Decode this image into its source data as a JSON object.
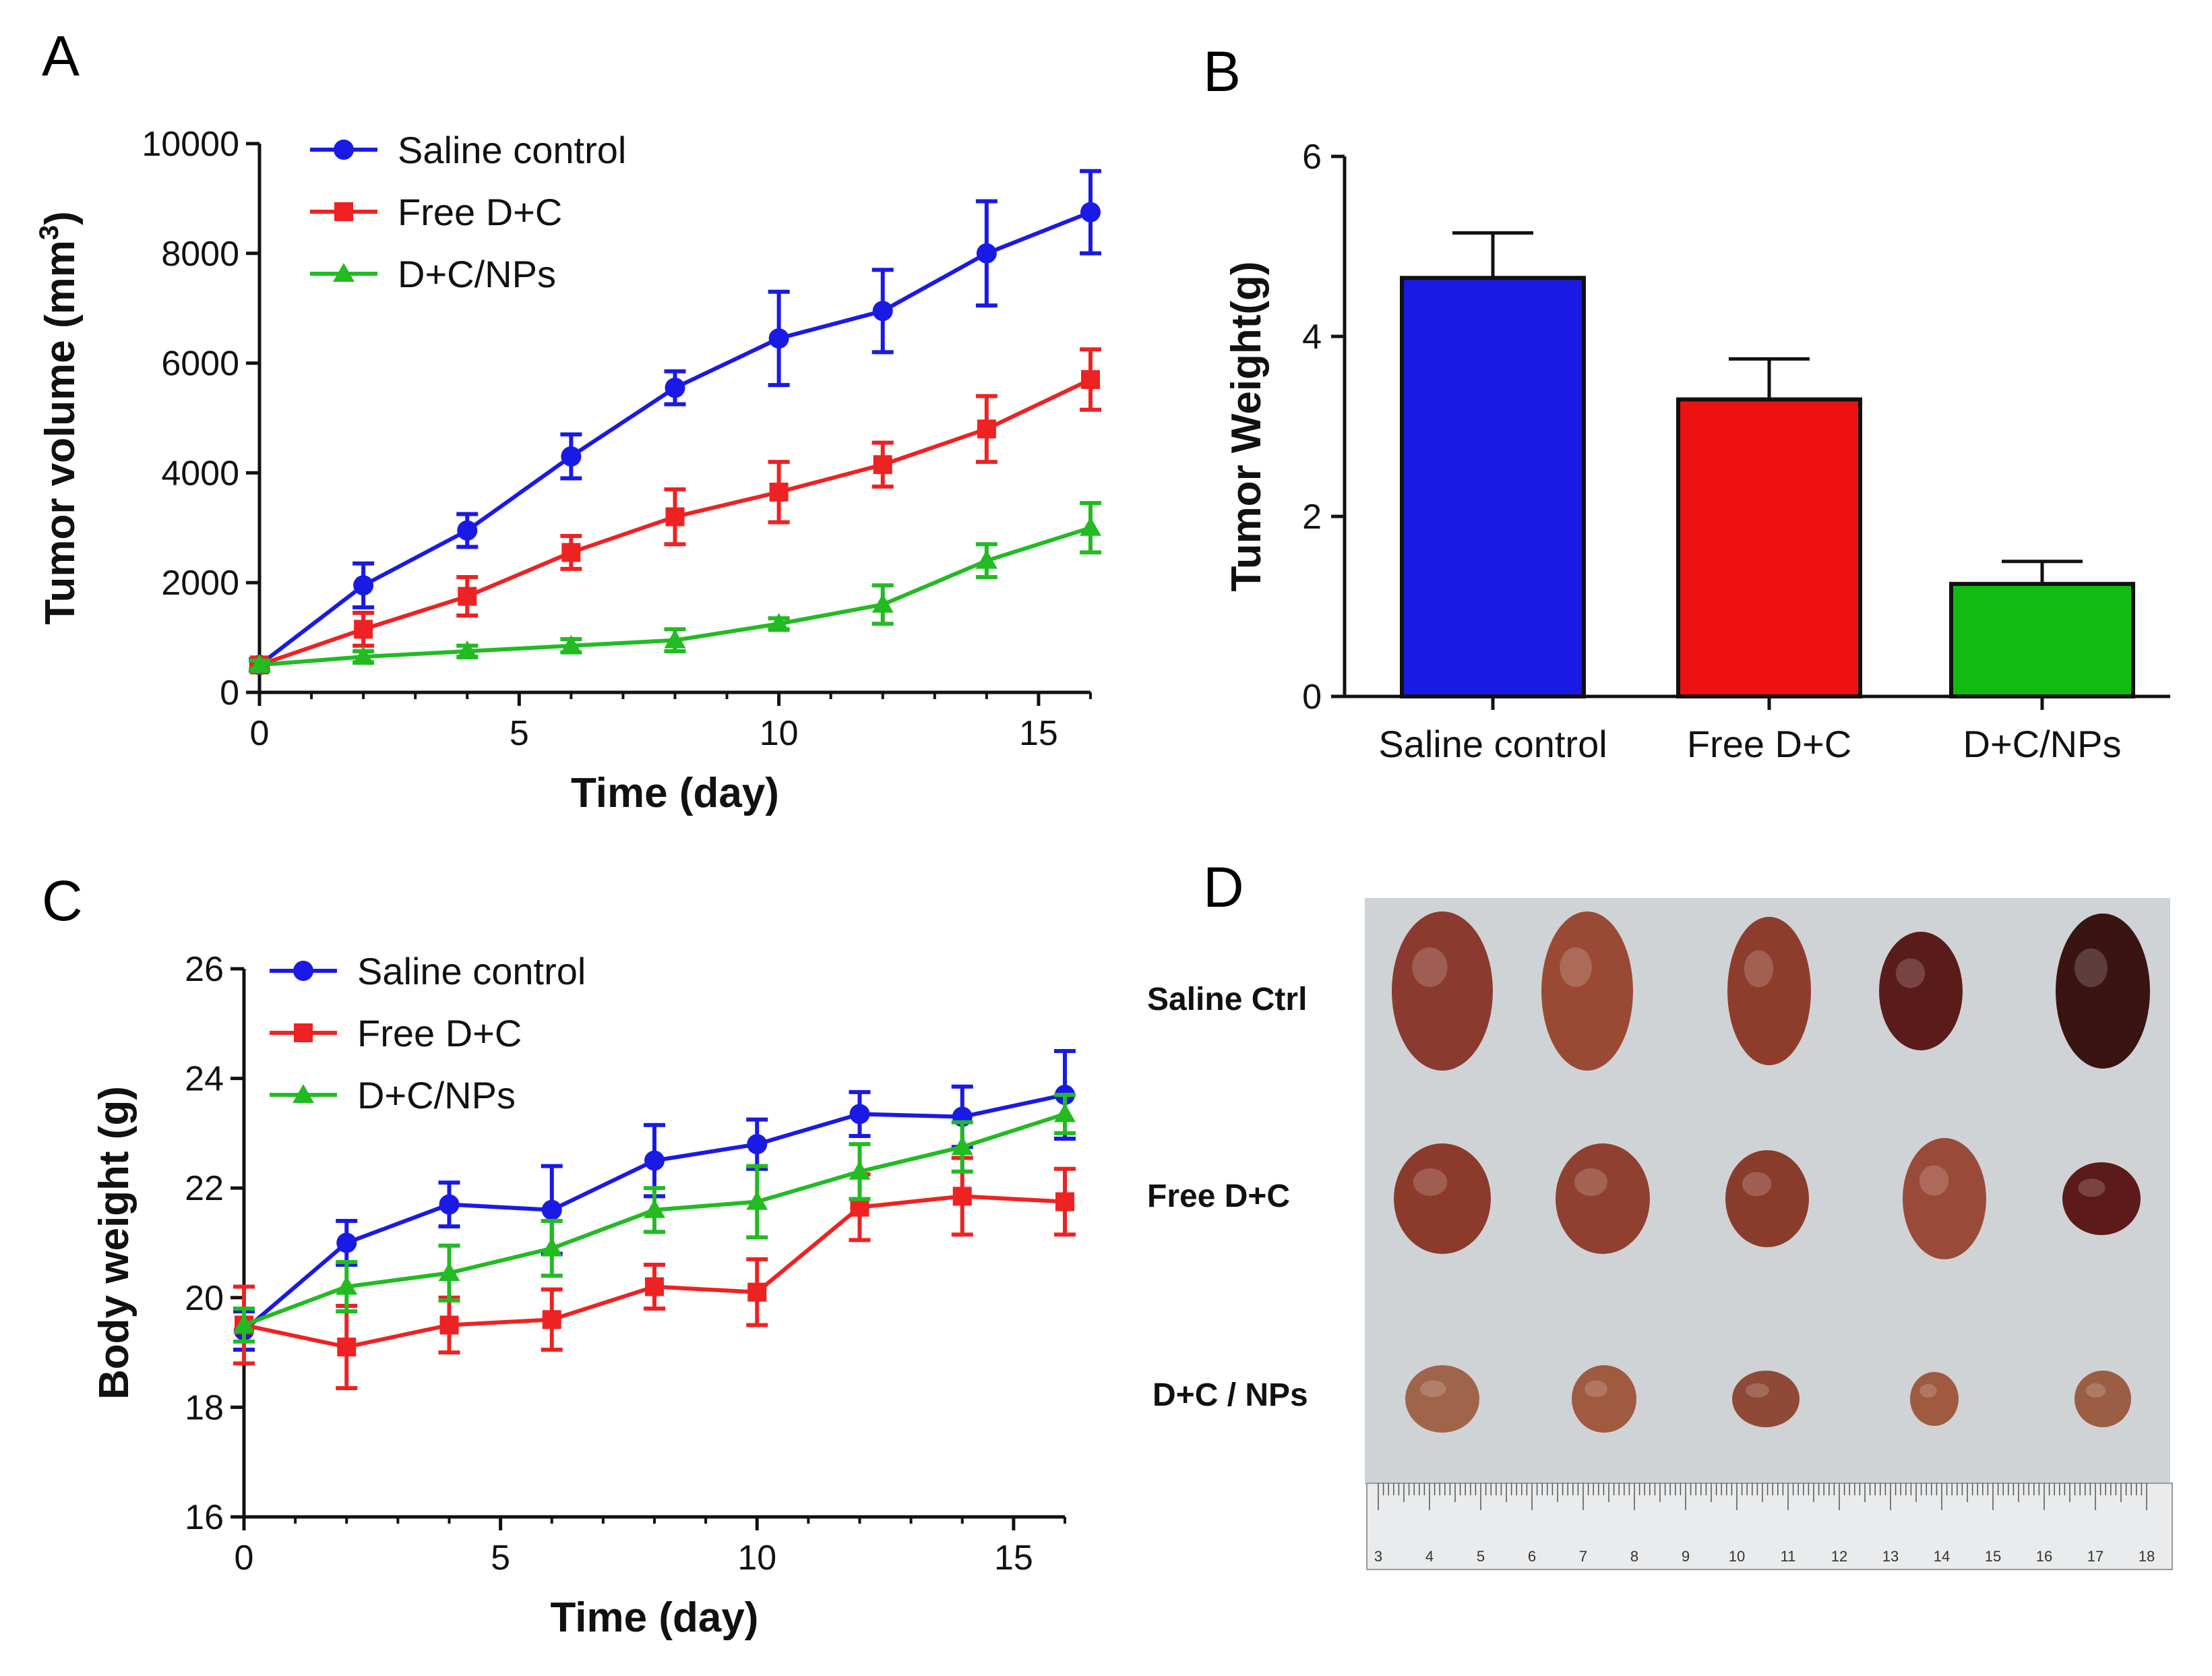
{
  "panels": {
    "a": "A",
    "b": "B",
    "c": "C",
    "d": "D"
  },
  "chart_data": [
    {
      "panel": "A",
      "type": "line",
      "xlabel": "Time (day)",
      "ylabel": "Tumor volume (mm",
      "ylabel_sup": "3",
      "ylabel_end": ")",
      "xlim": [
        0,
        16
      ],
      "ylim": [
        0,
        10000
      ],
      "xticks": [
        0,
        5,
        10,
        15
      ],
      "yticks": [
        0,
        2000,
        4000,
        6000,
        8000,
        10000
      ],
      "legend_position": "top-left",
      "series": [
        {
          "name": "Saline control",
          "color": "#1a1ae6",
          "marker": "circle",
          "x": [
            0,
            2,
            4,
            6,
            8,
            10,
            12,
            14,
            16
          ],
          "y": [
            500,
            1950,
            2950,
            4300,
            5550,
            6450,
            6950,
            8000,
            8750
          ],
          "err": [
            100,
            400,
            300,
            400,
            300,
            850,
            750,
            950,
            750
          ]
        },
        {
          "name": "Free D+C",
          "color": "#ee2222",
          "marker": "square",
          "x": [
            0,
            2,
            4,
            6,
            8,
            10,
            12,
            14,
            16
          ],
          "y": [
            500,
            1150,
            1750,
            2550,
            3200,
            3650,
            4150,
            4800,
            5700
          ],
          "err": [
            80,
            300,
            350,
            300,
            500,
            550,
            400,
            600,
            550
          ]
        },
        {
          "name": "D+C/NPs",
          "color": "#22bb22",
          "marker": "triangle",
          "x": [
            0,
            2,
            4,
            6,
            8,
            10,
            12,
            14,
            16
          ],
          "y": [
            500,
            650,
            750,
            850,
            950,
            1250,
            1600,
            2400,
            3000
          ],
          "err": [
            80,
            100,
            100,
            120,
            200,
            100,
            350,
            300,
            450
          ]
        }
      ]
    },
    {
      "panel": "B",
      "type": "bar",
      "ylabel": "Tumor Weight(g)",
      "categories": [
        "Saline control",
        "Free D+C",
        "D+C/NPs"
      ],
      "values": [
        4.65,
        3.3,
        1.25
      ],
      "errors": [
        0.5,
        0.45,
        0.25
      ],
      "colors": [
        "#1a1ae6",
        "#ee1111",
        "#11bb11"
      ],
      "ylim": [
        0,
        6
      ],
      "yticks": [
        0,
        2,
        4,
        6
      ]
    },
    {
      "panel": "C",
      "type": "line",
      "xlabel": "Time (day)",
      "ylabel": "Body weight (g)",
      "xlim": [
        0,
        16
      ],
      "ylim": [
        16,
        26
      ],
      "xticks": [
        0,
        5,
        10,
        15
      ],
      "yticks": [
        16,
        18,
        20,
        22,
        24,
        26
      ],
      "legend_position": "top-left",
      "series": [
        {
          "name": "Saline control",
          "color": "#1a1ae6",
          "marker": "circle",
          "x": [
            0,
            2,
            4,
            6,
            8,
            10,
            12,
            14,
            16
          ],
          "y": [
            19.4,
            21.0,
            21.7,
            21.6,
            22.5,
            22.8,
            23.35,
            23.3,
            23.7
          ],
          "err": [
            0.35,
            0.4,
            0.4,
            0.8,
            0.65,
            0.45,
            0.4,
            0.55,
            0.8
          ]
        },
        {
          "name": "Free D+C",
          "color": "#ee2222",
          "marker": "square",
          "x": [
            0,
            2,
            4,
            6,
            8,
            10,
            12,
            14,
            16
          ],
          "y": [
            19.5,
            19.1,
            19.5,
            19.6,
            20.2,
            20.1,
            21.65,
            21.85,
            21.75
          ],
          "err": [
            0.7,
            0.75,
            0.5,
            0.55,
            0.4,
            0.6,
            0.6,
            0.7,
            0.6
          ]
        },
        {
          "name": "D+C/NPs",
          "color": "#22bb22",
          "marker": "triangle",
          "x": [
            0,
            2,
            4,
            6,
            8,
            10,
            12,
            14,
            16
          ],
          "y": [
            19.5,
            20.2,
            20.45,
            20.9,
            21.6,
            21.75,
            22.3,
            22.75,
            23.35
          ],
          "err": [
            0.3,
            0.45,
            0.5,
            0.5,
            0.4,
            0.65,
            0.5,
            0.45,
            0.35
          ]
        }
      ]
    }
  ],
  "photo": {
    "row_labels": [
      "Saline Ctrl",
      "Free D+C",
      "D+C / NPs"
    ],
    "ruler_numbers": [
      "3",
      "4",
      "5",
      "6",
      "7",
      "8",
      "9",
      "10",
      "11",
      "12",
      "13",
      "14",
      "15",
      "16",
      "17",
      "18"
    ]
  }
}
